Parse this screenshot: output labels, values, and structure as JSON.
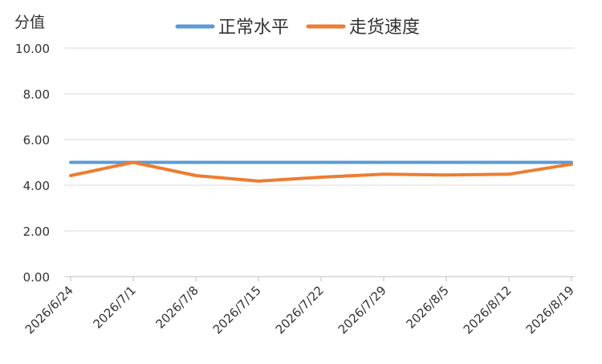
{
  "chart_data": {
    "type": "line",
    "ylabel": "分值",
    "ylim": [
      0,
      10
    ],
    "y_ticks": [
      "0.00",
      "2.00",
      "4.00",
      "6.00",
      "8.00",
      "10.00"
    ],
    "categories": [
      "2026/6/24",
      "2026/7/1",
      "2026/7/8",
      "2026/7/15",
      "2026/7/22",
      "2026/7/29",
      "2026/8/5",
      "2026/8/12",
      "2026/8/19"
    ],
    "series": [
      {
        "name": "正常水平",
        "color": "#5B9BD5",
        "values": [
          5,
          5,
          5,
          5,
          5,
          5,
          5,
          5,
          5
        ]
      },
      {
        "name": "走货速度",
        "color": "#ED7D31",
        "values": [
          4.42,
          5.0,
          4.42,
          4.18,
          4.35,
          4.48,
          4.45,
          4.48,
          4.92
        ]
      }
    ],
    "grid": true,
    "legend_position": "top-center"
  }
}
